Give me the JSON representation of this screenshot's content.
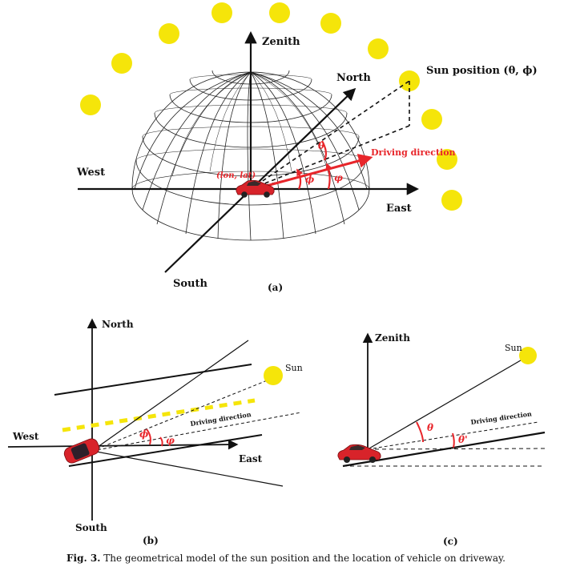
{
  "panel_a": {
    "zenith": "Zenith",
    "north": "North",
    "west": "West",
    "east": "East",
    "south": "South",
    "sun_position": "Sun position (θ, ϕ)",
    "driving_direction": "Driving direction",
    "lon_lat": "(lon, lat)",
    "theta": "θ",
    "phi": "ϕ",
    "varphi": "φ",
    "panel_label": "(a)"
  },
  "panel_b": {
    "north": "North",
    "west": "West",
    "east": "East",
    "south": "South",
    "sun": "Sun",
    "driving_direction": "Driving direction",
    "phi": "ϕ",
    "varphi": "φ",
    "panel_label": "(b)"
  },
  "panel_c": {
    "zenith": "Zenith",
    "sun": "Sun",
    "driving_direction": "Driving direction",
    "theta": "θ",
    "theta_prime": "θ'",
    "panel_label": "(c)"
  },
  "caption": {
    "label": "Fig. 3.",
    "text": "The geometrical model of the sun position and the location of vehicle on driveway."
  },
  "colors": {
    "sun": "#f5e50a",
    "car": "#d8232a",
    "arrow_red": "#e8262b",
    "ink": "#111111"
  }
}
